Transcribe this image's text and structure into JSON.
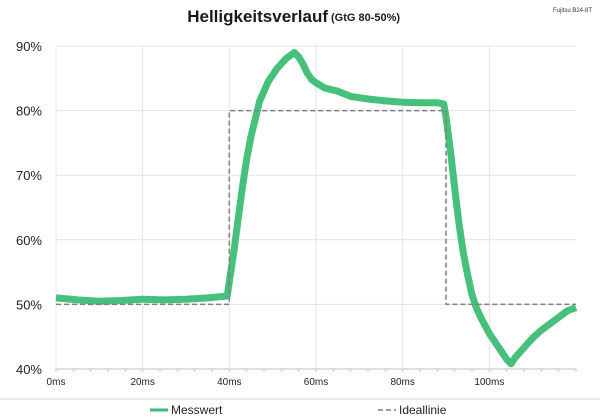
{
  "chart_data": {
    "type": "line",
    "title": "Helligkeitsverlauf",
    "subtitle": "(GtG 80-50%)",
    "brand_label": "Fujitsu B24-8T",
    "xlabel": "",
    "ylabel": "",
    "x_unit": "ms",
    "xlim": [
      0,
      120
    ],
    "ylim": [
      40,
      90
    ],
    "x_ticks": [
      0,
      20,
      40,
      60,
      80,
      100
    ],
    "x_tick_labels": [
      "0ms",
      "20ms",
      "40ms",
      "60ms",
      "80ms",
      "100ms"
    ],
    "y_ticks": [
      40,
      50,
      60,
      70,
      80,
      90
    ],
    "y_tick_labels": [
      "40%",
      "50%",
      "60%",
      "70%",
      "80%",
      "90%"
    ],
    "grid": true,
    "legend_position": "bottom",
    "series": [
      {
        "name": "Messwert",
        "color": "#3dbd74",
        "style": "solid",
        "x": [
          0,
          5,
          10,
          15,
          20,
          25,
          30,
          35,
          39.5,
          40,
          41,
          42,
          43,
          44,
          45,
          47,
          49,
          51,
          53,
          54,
          55,
          56,
          57,
          58,
          59,
          60,
          62,
          65,
          68,
          72,
          76,
          80,
          84,
          88,
          89.5,
          90,
          91,
          92,
          93,
          94,
          95,
          96,
          97,
          98,
          100,
          102,
          104,
          105,
          106,
          108,
          110,
          112,
          114,
          116,
          118,
          120
        ],
        "y": [
          51,
          50.7,
          50.5,
          50.6,
          50.8,
          50.7,
          50.8,
          51,
          51.3,
          53.5,
          58,
          63,
          68,
          72.5,
          76,
          81.5,
          84.5,
          86.5,
          88,
          88.5,
          89,
          88.3,
          87.2,
          85.8,
          84.8,
          84.3,
          83.5,
          83,
          82.2,
          81.8,
          81.5,
          81.3,
          81.2,
          81.2,
          81,
          79,
          74,
          68,
          62.5,
          58,
          54.5,
          51.5,
          49.5,
          48,
          45.5,
          43.5,
          41.5,
          40.8,
          41.8,
          43.3,
          44.8,
          46,
          47,
          48,
          49,
          49.5
        ]
      },
      {
        "name": "Ideallinie",
        "color": "#7f7f7f",
        "style": "dashed",
        "x": [
          0,
          40,
          40,
          90,
          90,
          120
        ],
        "y": [
          50,
          50,
          80,
          80,
          50,
          50
        ]
      }
    ]
  }
}
